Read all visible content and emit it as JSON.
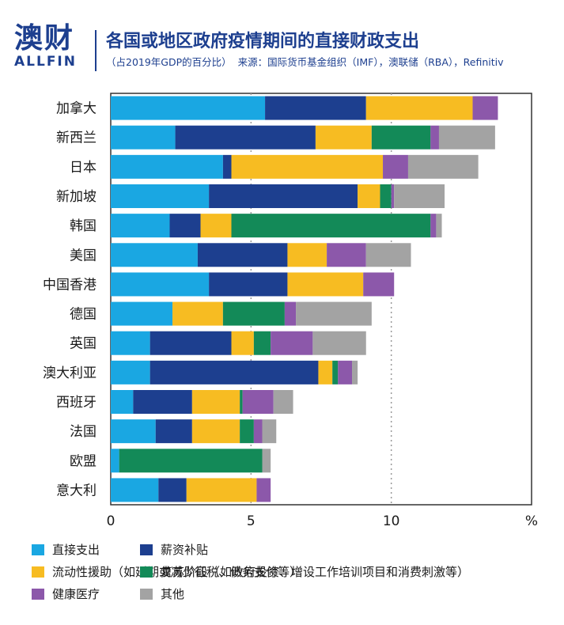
{
  "header": {
    "logo_cn": "澳财",
    "logo_en": "ALLFIN",
    "title": "各国或地区政府疫情期间的直接财政支出",
    "subtitle": "（占2019年GDP的百分比）",
    "source": "来源：国际货币基金组织（IMF），澳联储（RBA），Refinitiv"
  },
  "chart_data": {
    "type": "bar",
    "orientation": "horizontal",
    "stacked": true,
    "categories": [
      "加拿大",
      "新西兰",
      "日本",
      "新加坡",
      "韩国",
      "美国",
      "中国香港",
      "德国",
      "英国",
      "澳大利亚",
      "西班牙",
      "法国",
      "欧盟",
      "意大利"
    ],
    "series": [
      {
        "name": "直接支出",
        "color": "#1aa7e2",
        "values": [
          5.5,
          2.3,
          4.0,
          3.5,
          2.1,
          3.1,
          3.5,
          2.2,
          1.4,
          1.4,
          0.8,
          1.6,
          0.3,
          1.7
        ]
      },
      {
        "name": "薪资补贴",
        "color": "#1d3f8f",
        "values": [
          3.6,
          5.0,
          0.3,
          5.3,
          1.1,
          3.2,
          2.8,
          0.0,
          2.9,
          6.0,
          2.1,
          1.3,
          0.0,
          1.0
        ]
      },
      {
        "name": "流动性援助（如延期或减少征税、债务支付等）",
        "color": "#f7bc22",
        "values": [
          3.8,
          2.0,
          5.4,
          0.8,
          1.1,
          1.4,
          2.7,
          1.8,
          0.8,
          0.5,
          1.7,
          1.7,
          0.0,
          2.5
        ]
      },
      {
        "name": "复苏阶段（如政府投资、增设工作培训项目和消费刺激等）",
        "color": "#138a58",
        "values": [
          0.0,
          2.1,
          0.0,
          0.4,
          7.1,
          0.0,
          0.0,
          2.2,
          0.6,
          0.2,
          0.1,
          0.5,
          5.1,
          0.0
        ]
      },
      {
        "name": "健康医疗",
        "color": "#8c58aa",
        "values": [
          0.9,
          0.3,
          0.9,
          0.1,
          0.2,
          1.4,
          1.1,
          0.4,
          1.5,
          0.5,
          1.1,
          0.3,
          0.0,
          0.5
        ]
      },
      {
        "name": "其他",
        "color": "#a3a3a3",
        "values": [
          0.0,
          2.0,
          2.5,
          1.8,
          0.2,
          1.6,
          0.0,
          2.7,
          1.9,
          0.2,
          0.7,
          0.5,
          0.3,
          0.0
        ]
      }
    ],
    "x_ticks": [
      0,
      5,
      10
    ],
    "x_unit": "%",
    "xlim": [
      0,
      15
    ],
    "xlabel": "",
    "ylabel": "",
    "grid": "dotted vertical lines at 5 and 10",
    "legend_position": "bottom"
  }
}
